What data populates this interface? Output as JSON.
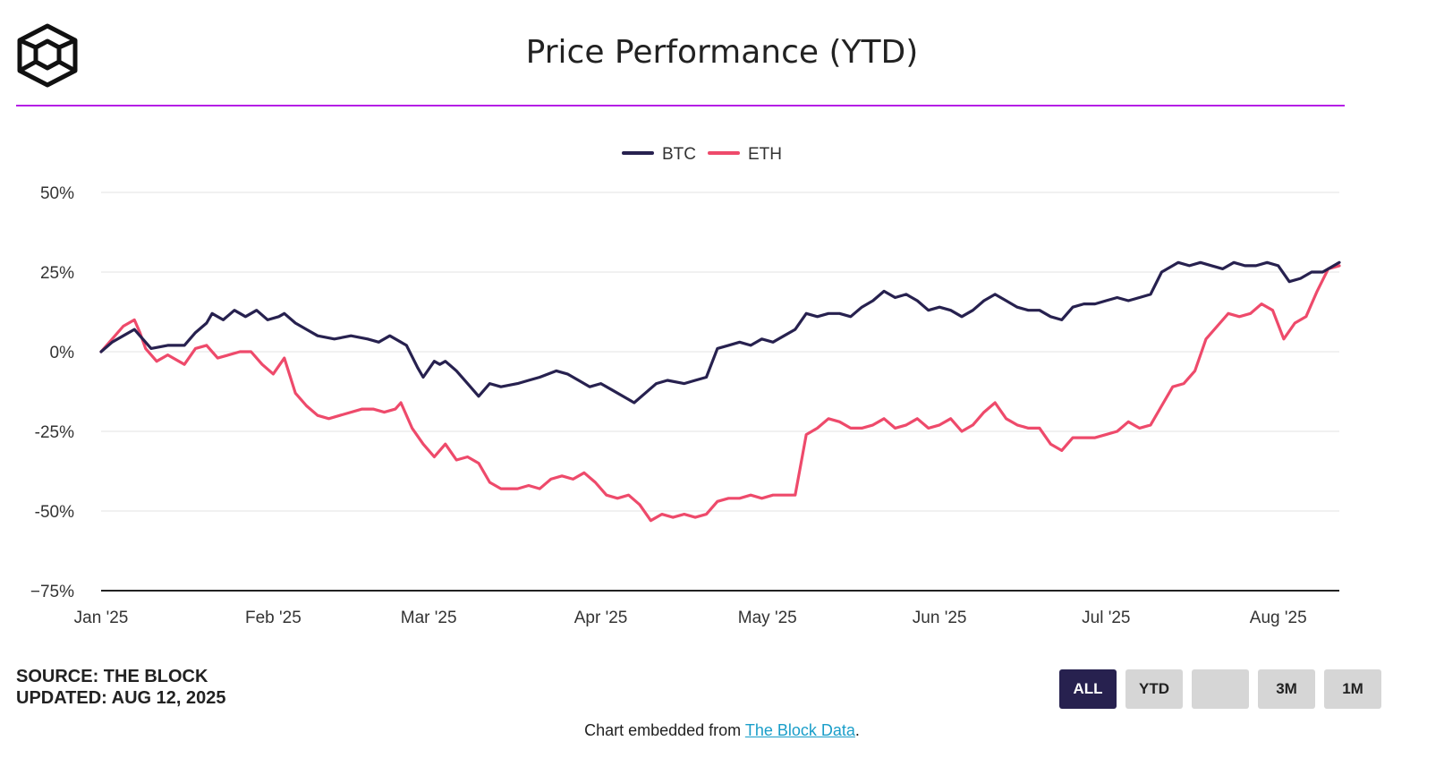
{
  "header": {
    "title": "Price Performance (YTD)",
    "logo_icon": "cube-logo-icon"
  },
  "colors": {
    "accent_rule": "#b51ee6",
    "btc": "#27214f",
    "eth": "#ee4a6b",
    "active_button": "#27214f",
    "link": "#1a9ec9"
  },
  "chart_data": {
    "type": "line",
    "title": "Price Performance (YTD)",
    "legend_position": "top-center",
    "grid": true,
    "ylim": [
      -75,
      50
    ],
    "yticks": [
      50,
      25,
      0,
      -25,
      -50,
      -75
    ],
    "ytick_labels": [
      "50%",
      "25%",
      "0%",
      "-25%",
      "-50%",
      "−75%"
    ],
    "x_start": "2025-01-01",
    "x_end": "2025-08-12",
    "xtick_labels": [
      "Jan '25",
      "Feb '25",
      "Mar '25",
      "Apr '25",
      "May '25",
      "Jun '25",
      "Jul '25",
      "Aug '25"
    ],
    "xticks": [
      "2025-01-01",
      "2025-02-01",
      "2025-03-01",
      "2025-04-01",
      "2025-05-01",
      "2025-06-01",
      "2025-07-01",
      "2025-08-01"
    ],
    "series": [
      {
        "name": "BTC",
        "color": "#27214f",
        "points": [
          [
            "2025-01-01",
            0
          ],
          [
            "2025-01-03",
            3
          ],
          [
            "2025-01-05",
            5
          ],
          [
            "2025-01-07",
            7
          ],
          [
            "2025-01-08",
            5
          ],
          [
            "2025-01-10",
            1
          ],
          [
            "2025-01-13",
            2
          ],
          [
            "2025-01-16",
            2
          ],
          [
            "2025-01-18",
            6
          ],
          [
            "2025-01-20",
            9
          ],
          [
            "2025-01-21",
            12
          ],
          [
            "2025-01-23",
            10
          ],
          [
            "2025-01-25",
            13
          ],
          [
            "2025-01-27",
            11
          ],
          [
            "2025-01-29",
            13
          ],
          [
            "2025-01-31",
            10
          ],
          [
            "2025-02-02",
            11
          ],
          [
            "2025-02-03",
            12
          ],
          [
            "2025-02-05",
            9
          ],
          [
            "2025-02-07",
            7
          ],
          [
            "2025-02-09",
            5
          ],
          [
            "2025-02-12",
            4
          ],
          [
            "2025-02-15",
            5
          ],
          [
            "2025-02-18",
            4
          ],
          [
            "2025-02-20",
            3
          ],
          [
            "2025-02-22",
            5
          ],
          [
            "2025-02-24",
            3
          ],
          [
            "2025-02-25",
            2
          ],
          [
            "2025-02-27",
            -5
          ],
          [
            "2025-02-28",
            -8
          ],
          [
            "2025-03-02",
            -3
          ],
          [
            "2025-03-03",
            -4
          ],
          [
            "2025-03-04",
            -3
          ],
          [
            "2025-03-06",
            -6
          ],
          [
            "2025-03-08",
            -10
          ],
          [
            "2025-03-10",
            -14
          ],
          [
            "2025-03-12",
            -10
          ],
          [
            "2025-03-14",
            -11
          ],
          [
            "2025-03-17",
            -10
          ],
          [
            "2025-03-19",
            -9
          ],
          [
            "2025-03-21",
            -8
          ],
          [
            "2025-03-24",
            -6
          ],
          [
            "2025-03-26",
            -7
          ],
          [
            "2025-03-28",
            -9
          ],
          [
            "2025-03-30",
            -11
          ],
          [
            "2025-04-01",
            -10
          ],
          [
            "2025-04-03",
            -12
          ],
          [
            "2025-04-06",
            -15
          ],
          [
            "2025-04-07",
            -16
          ],
          [
            "2025-04-09",
            -13
          ],
          [
            "2025-04-11",
            -10
          ],
          [
            "2025-04-13",
            -9
          ],
          [
            "2025-04-16",
            -10
          ],
          [
            "2025-04-18",
            -9
          ],
          [
            "2025-04-20",
            -8
          ],
          [
            "2025-04-22",
            1
          ],
          [
            "2025-04-24",
            2
          ],
          [
            "2025-04-26",
            3
          ],
          [
            "2025-04-28",
            2
          ],
          [
            "2025-04-30",
            4
          ],
          [
            "2025-05-02",
            3
          ],
          [
            "2025-05-04",
            5
          ],
          [
            "2025-05-06",
            7
          ],
          [
            "2025-05-08",
            12
          ],
          [
            "2025-05-10",
            11
          ],
          [
            "2025-05-12",
            12
          ],
          [
            "2025-05-14",
            12
          ],
          [
            "2025-05-16",
            11
          ],
          [
            "2025-05-18",
            14
          ],
          [
            "2025-05-20",
            16
          ],
          [
            "2025-05-22",
            19
          ],
          [
            "2025-05-24",
            17
          ],
          [
            "2025-05-26",
            18
          ],
          [
            "2025-05-28",
            16
          ],
          [
            "2025-05-30",
            13
          ],
          [
            "2025-06-01",
            14
          ],
          [
            "2025-06-03",
            13
          ],
          [
            "2025-06-05",
            11
          ],
          [
            "2025-06-07",
            13
          ],
          [
            "2025-06-09",
            16
          ],
          [
            "2025-06-11",
            18
          ],
          [
            "2025-06-13",
            16
          ],
          [
            "2025-06-15",
            14
          ],
          [
            "2025-06-17",
            13
          ],
          [
            "2025-06-19",
            13
          ],
          [
            "2025-06-21",
            11
          ],
          [
            "2025-06-23",
            10
          ],
          [
            "2025-06-25",
            14
          ],
          [
            "2025-06-27",
            15
          ],
          [
            "2025-06-29",
            15
          ],
          [
            "2025-07-01",
            16
          ],
          [
            "2025-07-03",
            17
          ],
          [
            "2025-07-05",
            16
          ],
          [
            "2025-07-07",
            17
          ],
          [
            "2025-07-09",
            18
          ],
          [
            "2025-07-11",
            25
          ],
          [
            "2025-07-13",
            27
          ],
          [
            "2025-07-14",
            28
          ],
          [
            "2025-07-16",
            27
          ],
          [
            "2025-07-18",
            28
          ],
          [
            "2025-07-20",
            27
          ],
          [
            "2025-07-22",
            26
          ],
          [
            "2025-07-24",
            28
          ],
          [
            "2025-07-26",
            27
          ],
          [
            "2025-07-28",
            27
          ],
          [
            "2025-07-30",
            28
          ],
          [
            "2025-08-01",
            27
          ],
          [
            "2025-08-03",
            22
          ],
          [
            "2025-08-05",
            23
          ],
          [
            "2025-08-07",
            25
          ],
          [
            "2025-08-09",
            25
          ],
          [
            "2025-08-12",
            28
          ]
        ]
      },
      {
        "name": "ETH",
        "color": "#ee4a6b",
        "points": [
          [
            "2025-01-01",
            0
          ],
          [
            "2025-01-03",
            4
          ],
          [
            "2025-01-05",
            8
          ],
          [
            "2025-01-07",
            10
          ],
          [
            "2025-01-08",
            6
          ],
          [
            "2025-01-09",
            1
          ],
          [
            "2025-01-11",
            -3
          ],
          [
            "2025-01-13",
            -1
          ],
          [
            "2025-01-15",
            -3
          ],
          [
            "2025-01-16",
            -4
          ],
          [
            "2025-01-18",
            1
          ],
          [
            "2025-01-20",
            2
          ],
          [
            "2025-01-22",
            -2
          ],
          [
            "2025-01-24",
            -1
          ],
          [
            "2025-01-26",
            0
          ],
          [
            "2025-01-28",
            0
          ],
          [
            "2025-01-30",
            -4
          ],
          [
            "2025-02-01",
            -7
          ],
          [
            "2025-02-03",
            -2
          ],
          [
            "2025-02-05",
            -13
          ],
          [
            "2025-02-07",
            -17
          ],
          [
            "2025-02-09",
            -20
          ],
          [
            "2025-02-11",
            -21
          ],
          [
            "2025-02-13",
            -20
          ],
          [
            "2025-02-15",
            -19
          ],
          [
            "2025-02-17",
            -18
          ],
          [
            "2025-02-19",
            -18
          ],
          [
            "2025-02-21",
            -19
          ],
          [
            "2025-02-23",
            -18
          ],
          [
            "2025-02-24",
            -16
          ],
          [
            "2025-02-26",
            -24
          ],
          [
            "2025-02-28",
            -29
          ],
          [
            "2025-03-02",
            -33
          ],
          [
            "2025-03-04",
            -29
          ],
          [
            "2025-03-06",
            -34
          ],
          [
            "2025-03-08",
            -33
          ],
          [
            "2025-03-10",
            -35
          ],
          [
            "2025-03-12",
            -41
          ],
          [
            "2025-03-14",
            -43
          ],
          [
            "2025-03-17",
            -43
          ],
          [
            "2025-03-19",
            -42
          ],
          [
            "2025-03-21",
            -43
          ],
          [
            "2025-03-23",
            -40
          ],
          [
            "2025-03-25",
            -39
          ],
          [
            "2025-03-27",
            -40
          ],
          [
            "2025-03-29",
            -38
          ],
          [
            "2025-03-31",
            -41
          ],
          [
            "2025-04-02",
            -45
          ],
          [
            "2025-04-04",
            -46
          ],
          [
            "2025-04-06",
            -45
          ],
          [
            "2025-04-08",
            -48
          ],
          [
            "2025-04-10",
            -53
          ],
          [
            "2025-04-12",
            -51
          ],
          [
            "2025-04-14",
            -52
          ],
          [
            "2025-04-16",
            -51
          ],
          [
            "2025-04-18",
            -52
          ],
          [
            "2025-04-20",
            -51
          ],
          [
            "2025-04-22",
            -47
          ],
          [
            "2025-04-24",
            -46
          ],
          [
            "2025-04-26",
            -46
          ],
          [
            "2025-04-28",
            -45
          ],
          [
            "2025-04-30",
            -46
          ],
          [
            "2025-05-02",
            -45
          ],
          [
            "2025-05-04",
            -45
          ],
          [
            "2025-05-06",
            -45
          ],
          [
            "2025-05-08",
            -26
          ],
          [
            "2025-05-10",
            -24
          ],
          [
            "2025-05-12",
            -21
          ],
          [
            "2025-05-14",
            -22
          ],
          [
            "2025-05-16",
            -24
          ],
          [
            "2025-05-18",
            -24
          ],
          [
            "2025-05-20",
            -23
          ],
          [
            "2025-05-22",
            -21
          ],
          [
            "2025-05-24",
            -24
          ],
          [
            "2025-05-26",
            -23
          ],
          [
            "2025-05-28",
            -21
          ],
          [
            "2025-05-30",
            -24
          ],
          [
            "2025-06-01",
            -23
          ],
          [
            "2025-06-03",
            -21
          ],
          [
            "2025-06-05",
            -25
          ],
          [
            "2025-06-07",
            -23
          ],
          [
            "2025-06-09",
            -19
          ],
          [
            "2025-06-11",
            -16
          ],
          [
            "2025-06-13",
            -21
          ],
          [
            "2025-06-15",
            -23
          ],
          [
            "2025-06-17",
            -24
          ],
          [
            "2025-06-19",
            -24
          ],
          [
            "2025-06-21",
            -29
          ],
          [
            "2025-06-23",
            -31
          ],
          [
            "2025-06-25",
            -27
          ],
          [
            "2025-06-27",
            -27
          ],
          [
            "2025-06-29",
            -27
          ],
          [
            "2025-07-01",
            -26
          ],
          [
            "2025-07-03",
            -25
          ],
          [
            "2025-07-05",
            -22
          ],
          [
            "2025-07-07",
            -24
          ],
          [
            "2025-07-09",
            -23
          ],
          [
            "2025-07-11",
            -17
          ],
          [
            "2025-07-13",
            -11
          ],
          [
            "2025-07-15",
            -10
          ],
          [
            "2025-07-17",
            -6
          ],
          [
            "2025-07-19",
            4
          ],
          [
            "2025-07-21",
            8
          ],
          [
            "2025-07-23",
            12
          ],
          [
            "2025-07-25",
            11
          ],
          [
            "2025-07-27",
            12
          ],
          [
            "2025-07-29",
            15
          ],
          [
            "2025-07-31",
            13
          ],
          [
            "2025-08-02",
            4
          ],
          [
            "2025-08-04",
            9
          ],
          [
            "2025-08-06",
            11
          ],
          [
            "2025-08-08",
            19
          ],
          [
            "2025-08-10",
            26
          ],
          [
            "2025-08-12",
            27
          ]
        ]
      }
    ]
  },
  "footer": {
    "source": "SOURCE: THE BLOCK",
    "updated": "UPDATED: AUG 12, 2025",
    "embed_prefix": "Chart embedded from ",
    "embed_link": "The Block Data",
    "embed_suffix": "."
  },
  "range_buttons": [
    {
      "label": "ALL",
      "active": true
    },
    {
      "label": "YTD",
      "active": false
    },
    {
      "label": "",
      "active": false
    },
    {
      "label": "3M",
      "active": false
    },
    {
      "label": "1M",
      "active": false
    }
  ]
}
